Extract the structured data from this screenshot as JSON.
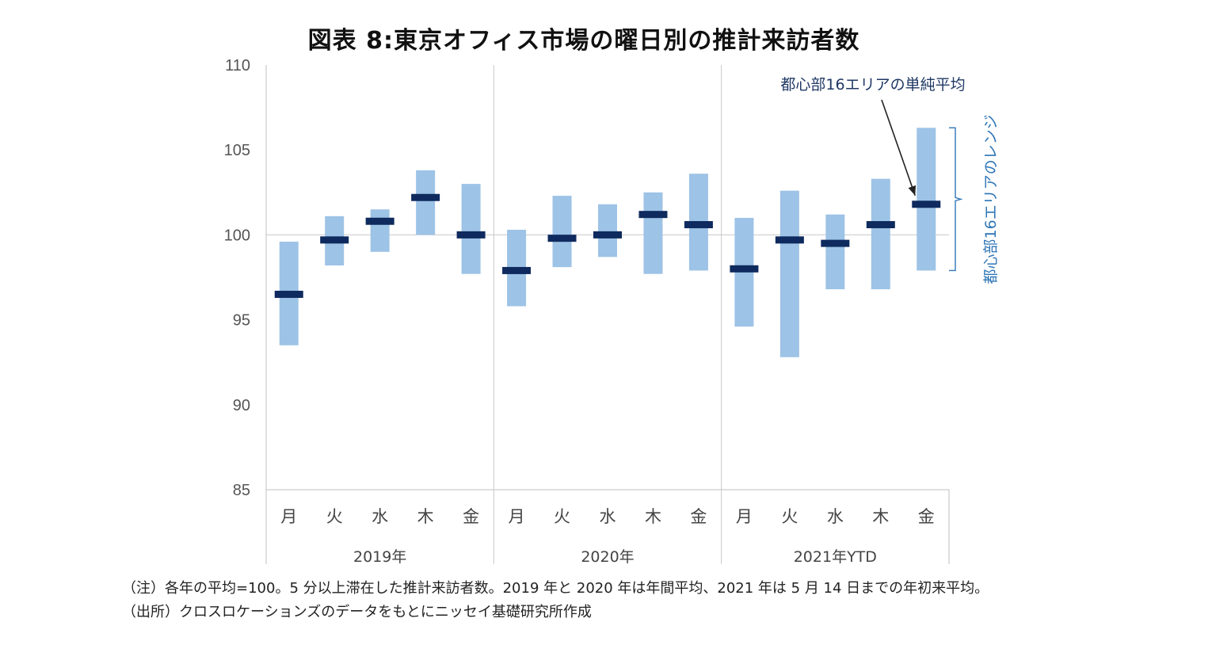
{
  "title": "図表 8:東京オフィス市場の曜日別の推計来訪者数",
  "chart_data": {
    "type": "bar",
    "subtype": "floating-range-with-mean-marker",
    "ylim": [
      85,
      110
    ],
    "yticks": [
      85,
      90,
      95,
      100,
      105,
      110
    ],
    "reference_line": 100,
    "groups": [
      {
        "label": "2019年",
        "days": [
          "月",
          "火",
          "水",
          "木",
          "金"
        ]
      },
      {
        "label": "2020年",
        "days": [
          "月",
          "火",
          "水",
          "木",
          "金"
        ]
      },
      {
        "label": "2021年YTD",
        "days": [
          "月",
          "火",
          "水",
          "木",
          "金"
        ]
      }
    ],
    "series": [
      {
        "name": "都心部16エリアのレンジ",
        "kind": "range",
        "low": [
          93.5,
          98.2,
          99.0,
          100.0,
          97.7,
          95.8,
          98.1,
          98.7,
          97.7,
          97.9,
          94.6,
          92.8,
          96.8,
          96.8,
          97.9
        ],
        "high": [
          99.6,
          101.1,
          101.5,
          103.8,
          103.0,
          100.3,
          102.3,
          101.8,
          102.5,
          103.6,
          101.0,
          102.6,
          101.2,
          103.3,
          106.3
        ]
      },
      {
        "name": "都心部16エリアの単純平均",
        "kind": "mean",
        "values": [
          96.5,
          99.7,
          100.8,
          102.2,
          100.0,
          97.9,
          99.8,
          100.0,
          101.2,
          100.6,
          98.0,
          99.7,
          99.5,
          100.6,
          101.8
        ]
      }
    ],
    "annotation_mean": "都心部16エリアの単純平均",
    "annotation_range": "都心部16エリアのレンジ",
    "colors": {
      "range": "#9dc3e6",
      "mean": "#0e2a5e",
      "annotation_range": "#2e75b6",
      "grid": "#c8c8c8"
    }
  },
  "notes": {
    "line1": "（注）各年の平均=100。5 分以上滞在した推計来訪者数。2019 年と 2020 年は年間平均、2021 年は 5 月 14 日までの年初来平均。",
    "line2": "（出所）クロスロケーションズのデータをもとにニッセイ基礎研究所作成"
  }
}
